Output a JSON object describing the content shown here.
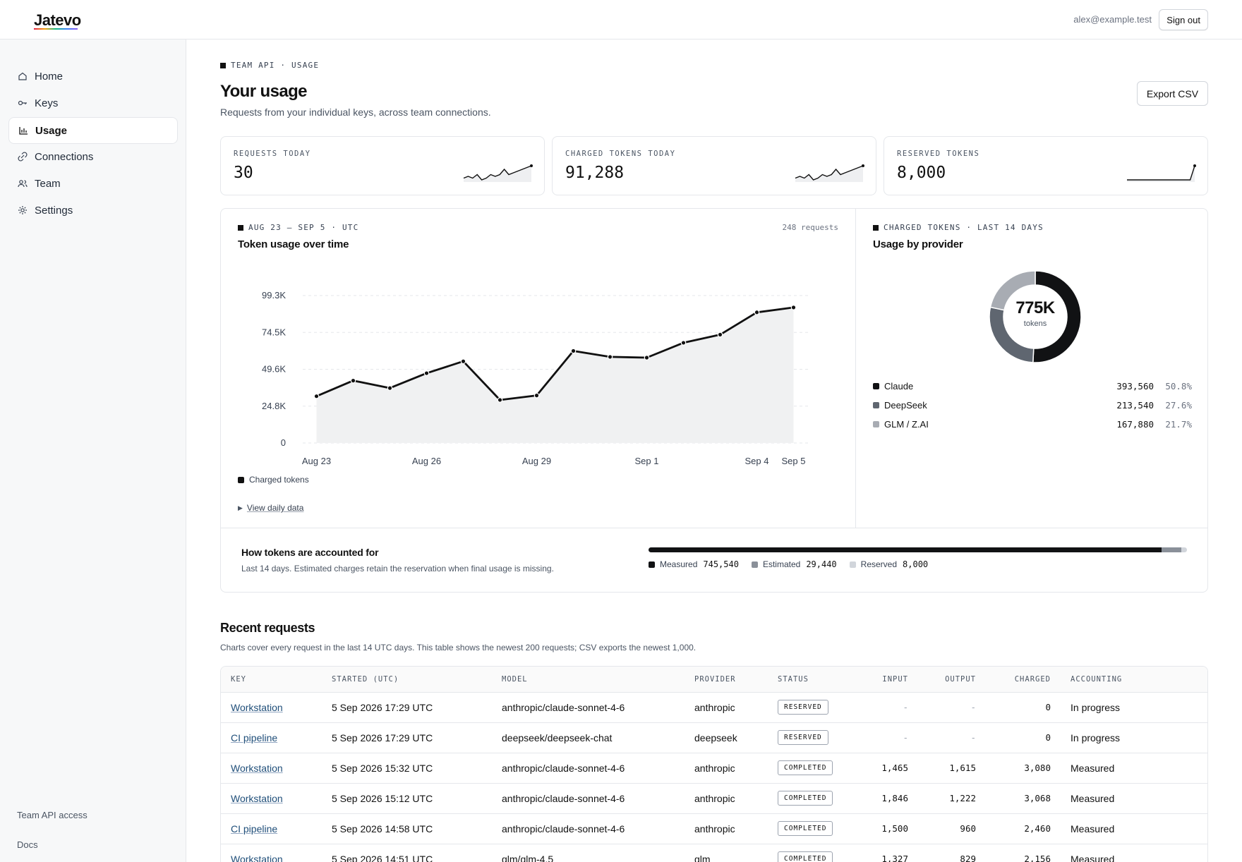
{
  "app": {
    "logo": "Jatevo",
    "user_email": "alex@example.test",
    "signout_label": "Sign out"
  },
  "sidebar": {
    "items": [
      {
        "label": "Home",
        "icon": "home-icon"
      },
      {
        "label": "Keys",
        "icon": "key-icon"
      },
      {
        "label": "Usage",
        "icon": "bar-chart-icon",
        "active": true
      },
      {
        "label": "Connections",
        "icon": "link-icon"
      },
      {
        "label": "Team",
        "icon": "users-icon"
      },
      {
        "label": "Settings",
        "icon": "gear-icon"
      }
    ],
    "footer": {
      "team_api": "Team API access",
      "docs": "Docs"
    }
  },
  "header": {
    "eyebrow": "TEAM API · USAGE",
    "title": "Your usage",
    "subtitle": "Requests from your individual keys, across team connections.",
    "export_label": "Export CSV"
  },
  "stats": [
    {
      "label": "REQUESTS TODAY",
      "value": "30",
      "spark": [
        4,
        5,
        4,
        6,
        3,
        4,
        6,
        5,
        6,
        9,
        6,
        7,
        8,
        9,
        10,
        11
      ]
    },
    {
      "label": "CHARGED TOKENS TODAY",
      "value": "91,288",
      "spark": [
        4,
        5,
        4,
        6,
        3,
        4,
        6,
        5,
        6,
        9,
        6,
        7,
        8,
        9,
        10,
        11
      ]
    },
    {
      "label": "RESERVED TOKENS",
      "value": "8,000",
      "spark": [
        0,
        0,
        0,
        0,
        0,
        0,
        0,
        0,
        0,
        0,
        0,
        0,
        0,
        0,
        0,
        11
      ]
    }
  ],
  "usage_chart": {
    "eyebrow": "AUG 23 – SEP 5 · UTC",
    "requests_note": "248 requests",
    "title": "Token usage over time",
    "legend_label": "Charged tokens",
    "details_label": "View daily data"
  },
  "chart_data": [
    {
      "type": "area",
      "title": "Token usage over time",
      "x": [
        "Aug 23",
        "Aug 24",
        "Aug 25",
        "Aug 26",
        "Aug 27",
        "Aug 28",
        "Aug 29",
        "Aug 30",
        "Aug 31",
        "Sep 1",
        "Sep 2",
        "Sep 3",
        "Sep 4",
        "Sep 5"
      ],
      "x_tick_labels": [
        "Aug 23",
        "Aug 26",
        "Aug 29",
        "Sep 1",
        "Sep 4",
        "Sep 5"
      ],
      "series": [
        {
          "name": "Charged tokens",
          "values": [
            31500,
            42000,
            37000,
            47000,
            55000,
            29000,
            32000,
            62000,
            58000,
            57500,
            67500,
            73000,
            88000,
            91288
          ]
        }
      ],
      "y_tick_labels": [
        "0",
        "24.8K",
        "49.6K",
        "74.5K",
        "99.3K"
      ],
      "ylim": [
        0,
        99300
      ],
      "grid": true,
      "legend": "bottom-left"
    },
    {
      "type": "pie",
      "title": "Usage by provider",
      "center_value": "775K",
      "center_label": "tokens",
      "categories": [
        "Claude",
        "DeepSeek",
        "GLM / Z.AI"
      ],
      "values": [
        393560,
        213540,
        167880
      ],
      "value_labels": [
        "393,560",
        "213,540",
        "167,880"
      ],
      "percent_labels": [
        "50.8%",
        "27.6%",
        "21.7%"
      ],
      "colors": [
        "#111214",
        "#5f6670",
        "#a8acb3"
      ]
    }
  ],
  "provider_panel": {
    "eyebrow": "CHARGED TOKENS · LAST 14 DAYS"
  },
  "accounting": {
    "title": "How tokens are accounted for",
    "subtitle": "Last 14 days. Estimated charges retain the reservation when final usage is missing.",
    "parts": [
      {
        "label": "Measured",
        "value": "745,540",
        "amount": 745540,
        "color": "#111214"
      },
      {
        "label": "Estimated",
        "value": "29,440",
        "amount": 29440,
        "color": "#8a9099"
      },
      {
        "label": "Reserved",
        "value": "8,000",
        "amount": 8000,
        "color": "#d1d5db"
      }
    ]
  },
  "recent": {
    "title": "Recent requests",
    "subtitle": "Charts cover every request in the last 14 UTC days. This table shows the newest 200 requests; CSV exports the newest 1,000.",
    "columns": [
      "KEY",
      "STARTED (UTC)",
      "MODEL",
      "PROVIDER",
      "STATUS",
      "INPUT",
      "OUTPUT",
      "CHARGED",
      "ACCOUNTING"
    ],
    "rows": [
      {
        "key": "Workstation",
        "started": "5 Sep 2026 17:29 UTC",
        "model": "anthropic/claude-sonnet-4-6",
        "provider": "anthropic",
        "status": "RESERVED",
        "input": "-",
        "output": "-",
        "charged": "0",
        "accounting": "In progress"
      },
      {
        "key": "CI pipeline",
        "started": "5 Sep 2026 17:29 UTC",
        "model": "deepseek/deepseek-chat",
        "provider": "deepseek",
        "status": "RESERVED",
        "input": "-",
        "output": "-",
        "charged": "0",
        "accounting": "In progress"
      },
      {
        "key": "Workstation",
        "started": "5 Sep 2026 15:32 UTC",
        "model": "anthropic/claude-sonnet-4-6",
        "provider": "anthropic",
        "status": "COMPLETED",
        "input": "1,465",
        "output": "1,615",
        "charged": "3,080",
        "accounting": "Measured"
      },
      {
        "key": "Workstation",
        "started": "5 Sep 2026 15:12 UTC",
        "model": "anthropic/claude-sonnet-4-6",
        "provider": "anthropic",
        "status": "COMPLETED",
        "input": "1,846",
        "output": "1,222",
        "charged": "3,068",
        "accounting": "Measured"
      },
      {
        "key": "CI pipeline",
        "started": "5 Sep 2026 14:58 UTC",
        "model": "anthropic/claude-sonnet-4-6",
        "provider": "anthropic",
        "status": "COMPLETED",
        "input": "1,500",
        "output": "960",
        "charged": "2,460",
        "accounting": "Measured"
      },
      {
        "key": "Workstation",
        "started": "5 Sep 2026 14:51 UTC",
        "model": "glm/glm-4.5",
        "provider": "glm",
        "status": "COMPLETED",
        "input": "1,327",
        "output": "829",
        "charged": "2,156",
        "accounting": "Measured"
      }
    ]
  }
}
